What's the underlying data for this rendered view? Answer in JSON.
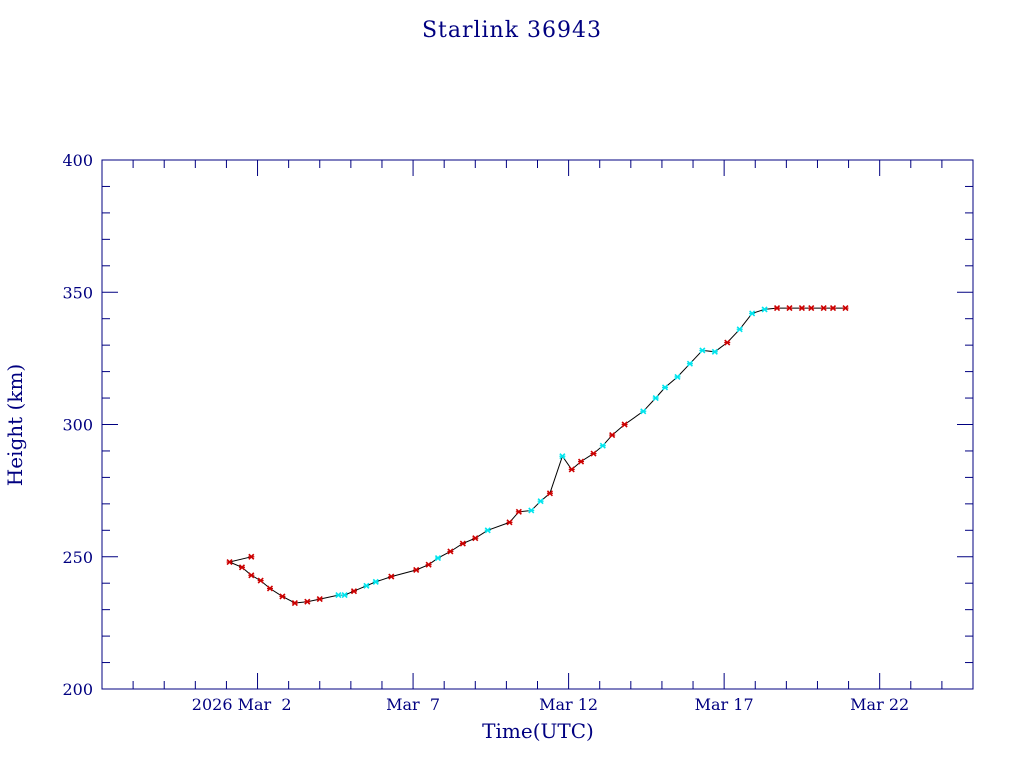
{
  "chart_data": {
    "type": "line",
    "title": "Starlink 36943",
    "xlabel": "Time(UTC)",
    "ylabel": "Height (km)",
    "ylim": [
      200,
      400
    ],
    "xlim": [
      "2026-02-25",
      "2026-03-25"
    ],
    "yticks": [
      200,
      250,
      300,
      350,
      400
    ],
    "yticklabels": [
      "200",
      "250",
      "300",
      "350",
      "400"
    ],
    "xticks": [
      "2026-03-02",
      "2026-03-07",
      "2026-03-12",
      "2026-03-17",
      "2026-03-22"
    ],
    "xticklabels": [
      "2026 Mar  2",
      "Mar  7",
      "Mar 12",
      "Mar 17",
      "Mar 22"
    ],
    "grid": false,
    "colors": {
      "axes": "#000080",
      "line": "#000000",
      "marker_a": "#cc0000",
      "marker_b": "#00e5ee"
    },
    "series": [
      {
        "x": [
          "2026-02-29T19:12",
          "2026-03-01T02:24",
          "2026-03-01T12:00",
          "2026-03-01T19:12",
          "2026-03-02T02:24",
          "2026-03-02T09:36",
          "2026-03-02T19:12",
          "2026-03-03T04:48",
          "2026-03-03T14:24",
          "2026-03-04T00:00",
          "2026-03-04T14:24",
          "2026-03-04T19:12",
          "2026-03-05T02:24",
          "2026-03-05T12:00",
          "2026-03-05T19:12",
          "2026-03-06T07:12",
          "2026-03-07T02:24",
          "2026-03-07T12:00",
          "2026-03-07T19:12",
          "2026-03-08T04:48",
          "2026-03-08T14:24",
          "2026-03-09T00:00",
          "2026-03-09T09:36",
          "2026-03-10T02:24",
          "2026-03-10T09:36",
          "2026-03-10T19:12",
          "2026-03-11T02:24",
          "2026-03-11T09:36",
          "2026-03-11T19:12",
          "2026-03-12T02:24",
          "2026-03-12T09:36",
          "2026-03-12T19:12",
          "2026-03-13T02:24",
          "2026-03-13T09:36",
          "2026-03-13T19:12",
          "2026-03-14T09:36",
          "2026-03-14T19:12",
          "2026-03-15T02:24",
          "2026-03-15T12:00",
          "2026-03-15T21:36",
          "2026-03-16T07:12",
          "2026-03-16T16:48",
          "2026-03-17T02:24",
          "2026-03-17T12:00",
          "2026-03-17T21:36",
          "2026-03-18T07:12",
          "2026-03-18T16:48",
          "2026-03-19T02:24",
          "2026-03-19T12:00",
          "2026-03-19T19:12",
          "2026-03-20T04:48",
          "2026-03-20T12:00",
          "2026-03-20T21:36"
        ],
        "y": [
          250,
          248,
          246,
          243,
          241,
          238,
          235,
          232.5,
          233,
          234,
          235.5,
          235.5,
          237,
          239,
          240.5,
          242.5,
          245,
          247,
          249.5,
          252,
          255,
          257,
          260,
          263,
          267,
          267.5,
          271,
          274,
          288,
          283,
          286,
          289,
          292,
          296,
          300,
          305,
          310,
          314,
          318,
          323,
          328,
          327.5,
          331,
          336,
          342,
          343.5,
          344,
          344,
          344,
          344,
          344,
          344,
          344
        ],
        "markers": [
          "a",
          "a",
          "a",
          "a",
          "a",
          "a",
          "a",
          "a",
          "a",
          "a",
          "b",
          "b",
          "a",
          "b",
          "b",
          "a",
          "a",
          "a",
          "b",
          "a",
          "a",
          "a",
          "b",
          "a",
          "a",
          "b",
          "b",
          "a",
          "b",
          "a",
          "a",
          "a",
          "b",
          "a",
          "a",
          "b",
          "b",
          "b",
          "b",
          "b",
          "b",
          "b",
          "a",
          "b",
          "b",
          "b",
          "a",
          "a",
          "a",
          "a",
          "a",
          "a",
          "a"
        ]
      }
    ]
  }
}
